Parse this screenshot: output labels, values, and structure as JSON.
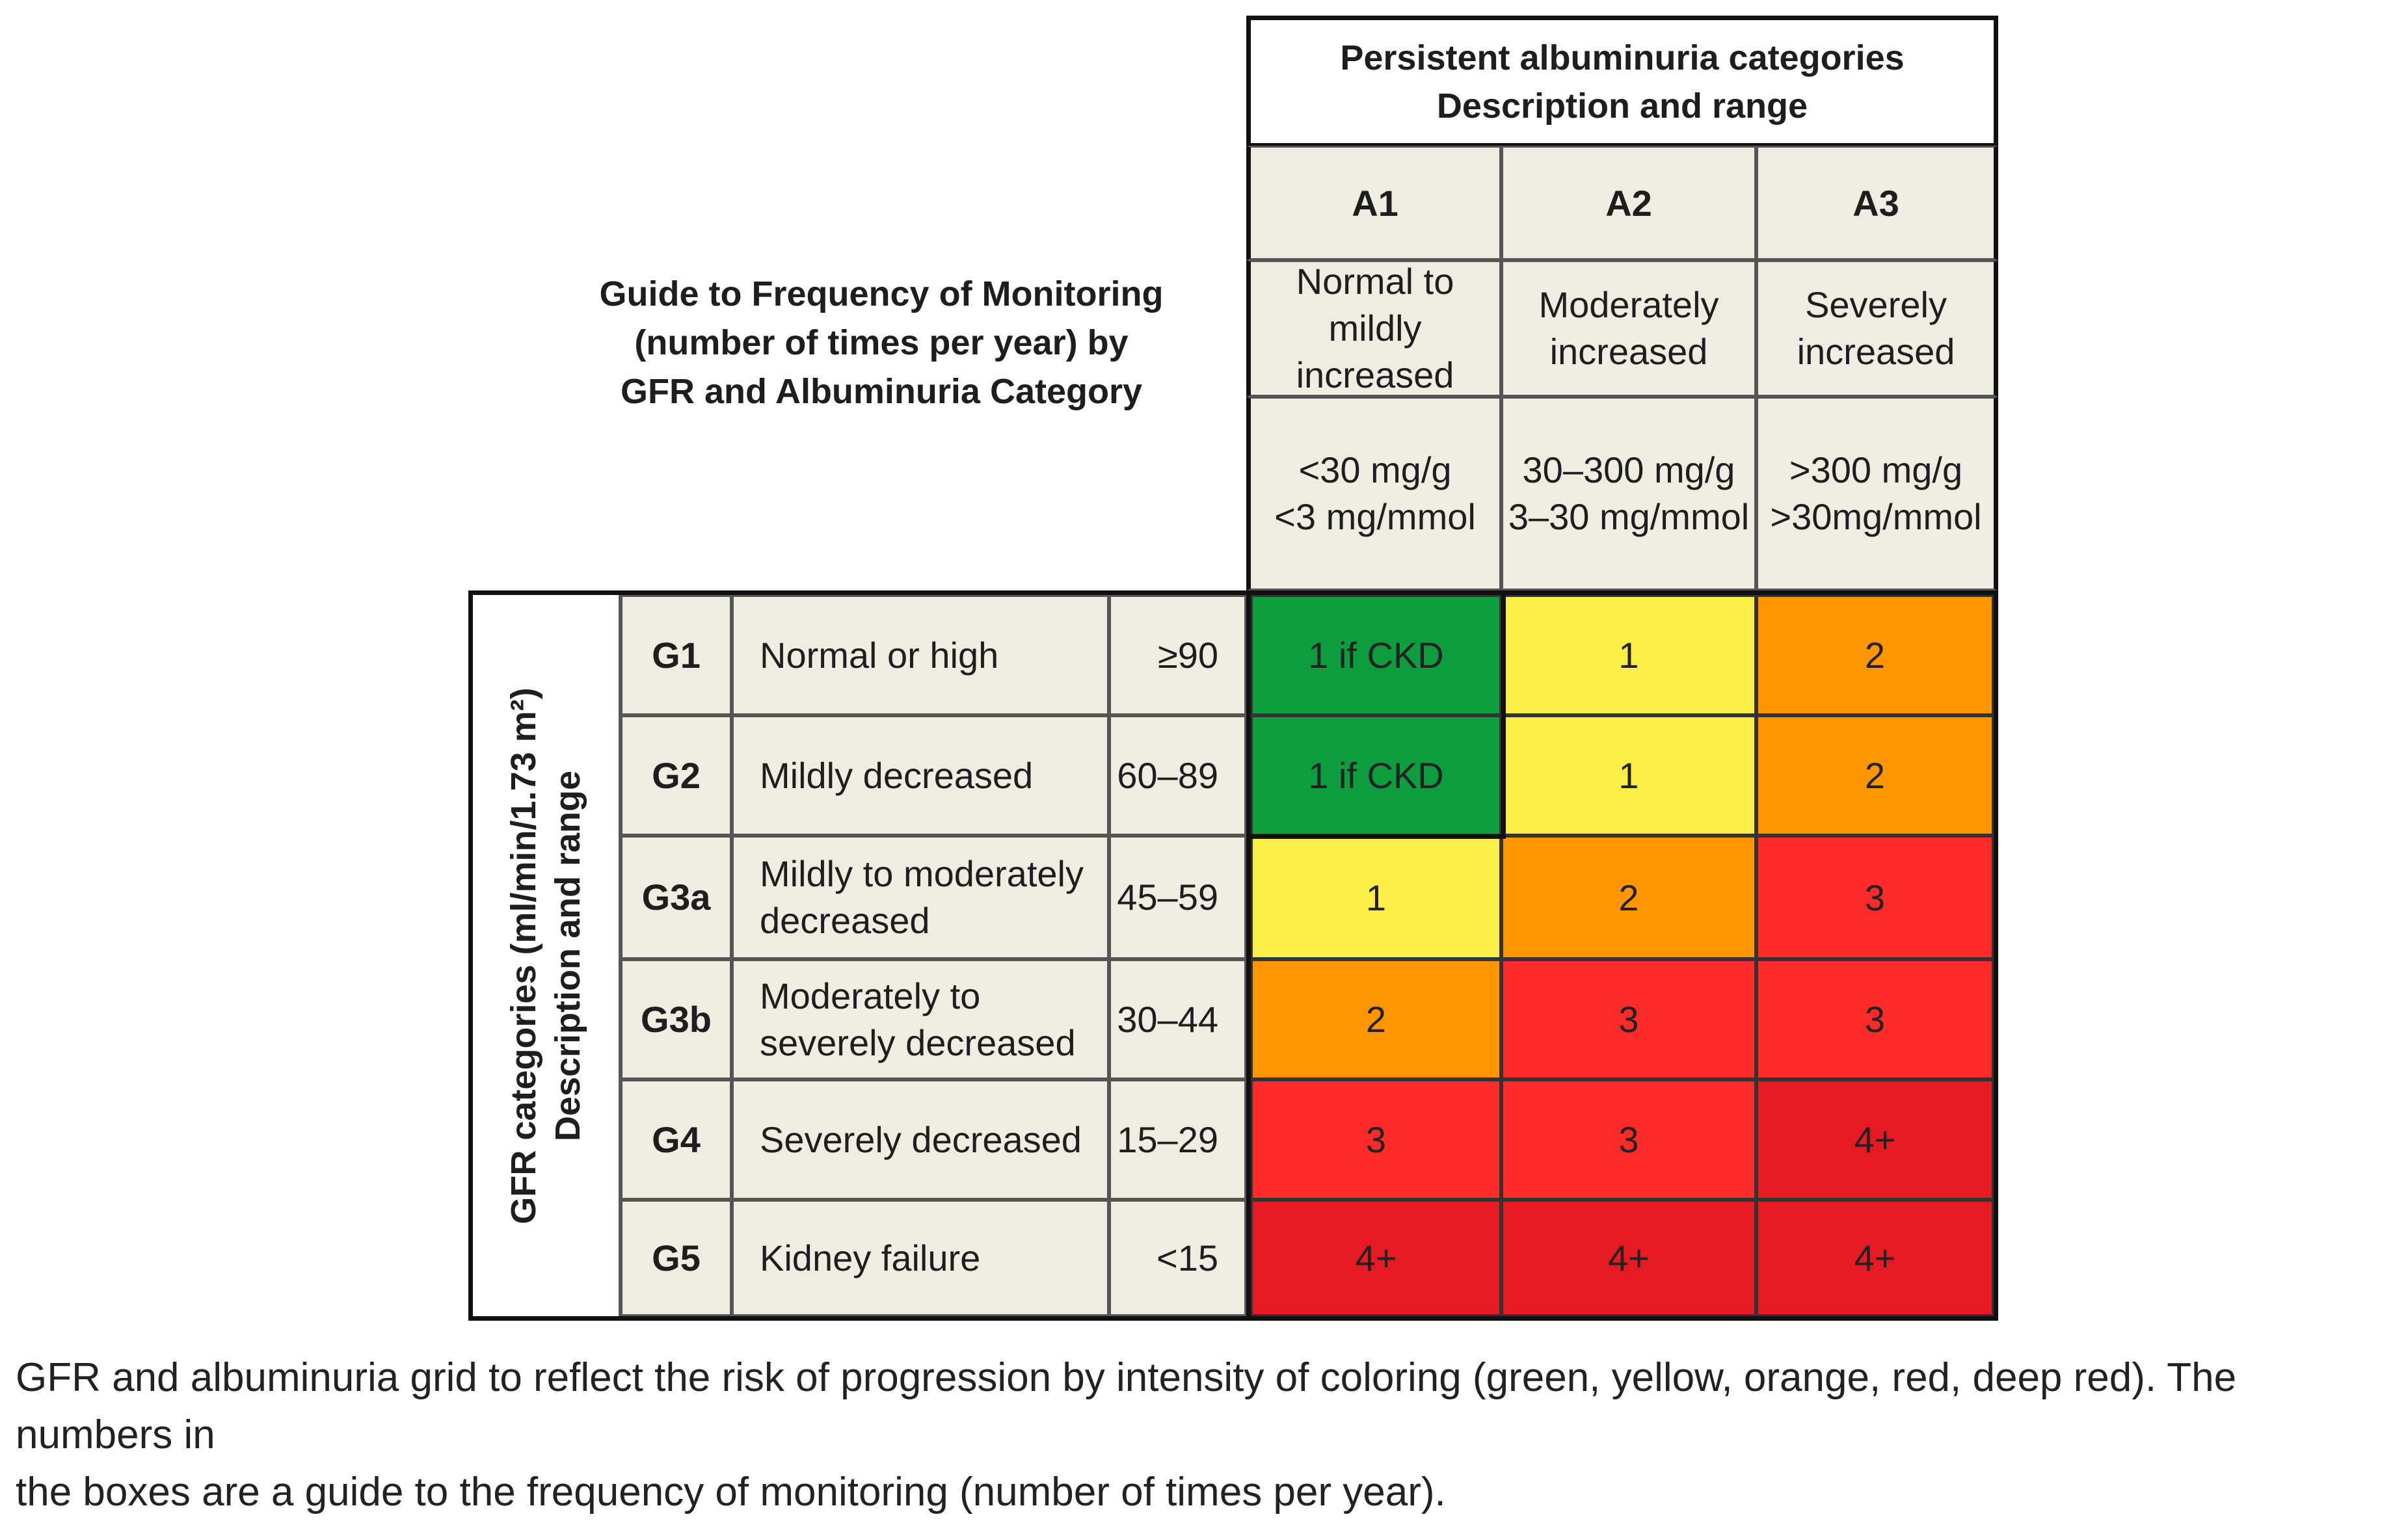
{
  "title_lines": [
    "Guide to Frequency of Monitoring",
    "(number of times per year) by",
    "GFR and Albuminuria Category"
  ],
  "albuminuria_header": {
    "line1": "Persistent albuminuria categories",
    "line2": "Description  and range"
  },
  "albuminuria_columns": [
    {
      "code": "A1",
      "description_lines": [
        "Normal to",
        "mildly",
        "increased"
      ],
      "range_lines": [
        "<30 mg/g",
        "<3 mg/mmol"
      ]
    },
    {
      "code": "A2",
      "description_lines": [
        "Moderately",
        "increased"
      ],
      "range_lines": [
        "30–300 mg/g",
        "3–30 mg/mmol"
      ]
    },
    {
      "code": "A3",
      "description_lines": [
        "Severely",
        "increased"
      ],
      "range_lines": [
        ">300 mg/g",
        ">30mg/mmol"
      ]
    }
  ],
  "gfr_axis_label": {
    "line1": "GFR categories (ml/min/1.73 m²)",
    "line2": "Description and range"
  },
  "gfr_rows": [
    {
      "code": "G1",
      "description_lines": [
        "Normal or high"
      ],
      "range": "≥90",
      "cells": [
        "1 if CKD",
        "1",
        "2"
      ]
    },
    {
      "code": "G2",
      "description_lines": [
        "Mildly decreased"
      ],
      "range": "60–89",
      "cells": [
        "1 if CKD",
        "1",
        "2"
      ]
    },
    {
      "code": "G3a",
      "description_lines": [
        "Mildly to moderately",
        "decreased"
      ],
      "range": "45–59",
      "cells": [
        "1",
        "2",
        "3"
      ]
    },
    {
      "code": "G3b",
      "description_lines": [
        "Moderately to",
        "severely decreased"
      ],
      "range": "30–44",
      "cells": [
        "2",
        "3",
        "3"
      ]
    },
    {
      "code": "G4",
      "description_lines": [
        "Severely decreased"
      ],
      "range": "15–29",
      "cells": [
        "3",
        "3",
        "4+"
      ]
    },
    {
      "code": "G5",
      "description_lines": [
        "Kidney failure"
      ],
      "range": "<15",
      "cells": [
        "4+",
        "4+",
        "4+"
      ]
    }
  ],
  "risk_colors": {
    "green": "#0d9c3e",
    "yellow": "#fbee47",
    "orange": "#fd9600",
    "red": "#fd2a2a",
    "deep_red": "#e61a22"
  },
  "cell_color_keys": [
    [
      "green",
      "yellow",
      "orange"
    ],
    [
      "green",
      "yellow",
      "orange"
    ],
    [
      "yellow",
      "orange",
      "red"
    ],
    [
      "orange",
      "red",
      "red"
    ],
    [
      "red",
      "red",
      "deep_red"
    ],
    [
      "deep_red",
      "deep_red",
      "deep_red"
    ]
  ],
  "caption": {
    "line1": "GFR and albuminuria grid to reflect the risk of progression by intensity of coloring (green, yellow, orange, red, deep red). The numbers in",
    "line2": "the boxes are a guide to the frequency of monitoring (number of times per year)."
  }
}
